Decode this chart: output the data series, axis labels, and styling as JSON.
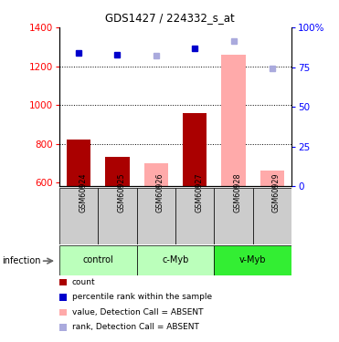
{
  "title": "GDS1427 / 224332_s_at",
  "samples": [
    "GSM60924",
    "GSM60925",
    "GSM60926",
    "GSM60927",
    "GSM60928",
    "GSM60929"
  ],
  "groups": [
    {
      "name": "control",
      "indices": [
        0,
        1
      ],
      "color": "#bbffbb"
    },
    {
      "name": "c-Myb",
      "indices": [
        2,
        3
      ],
      "color": "#bbffbb"
    },
    {
      "name": "v-Myb",
      "indices": [
        4,
        5
      ],
      "color": "#33ee33"
    }
  ],
  "count_values": [
    820,
    730,
    700,
    960,
    1260,
    660
  ],
  "rank_values": [
    1270,
    1260,
    1255,
    1290,
    1330,
    1190
  ],
  "absent": [
    false,
    false,
    true,
    false,
    true,
    true
  ],
  "ylim_left": [
    580,
    1400
  ],
  "ylim_right": [
    0,
    100
  ],
  "yticks_left": [
    600,
    800,
    1000,
    1200,
    1400
  ],
  "yticks_right": [
    0,
    25,
    50,
    75,
    100
  ],
  "bar_color_present": "#aa0000",
  "bar_color_absent": "#ffaaaa",
  "rank_color_present": "#0000cc",
  "rank_color_absent": "#aaaadd",
  "infection_label": "infection",
  "legend_items": [
    {
      "color": "#aa0000",
      "label": "count"
    },
    {
      "color": "#0000cc",
      "label": "percentile rank within the sample"
    },
    {
      "color": "#ffaaaa",
      "label": "value, Detection Call = ABSENT"
    },
    {
      "color": "#aaaadd",
      "label": "rank, Detection Call = ABSENT"
    }
  ]
}
